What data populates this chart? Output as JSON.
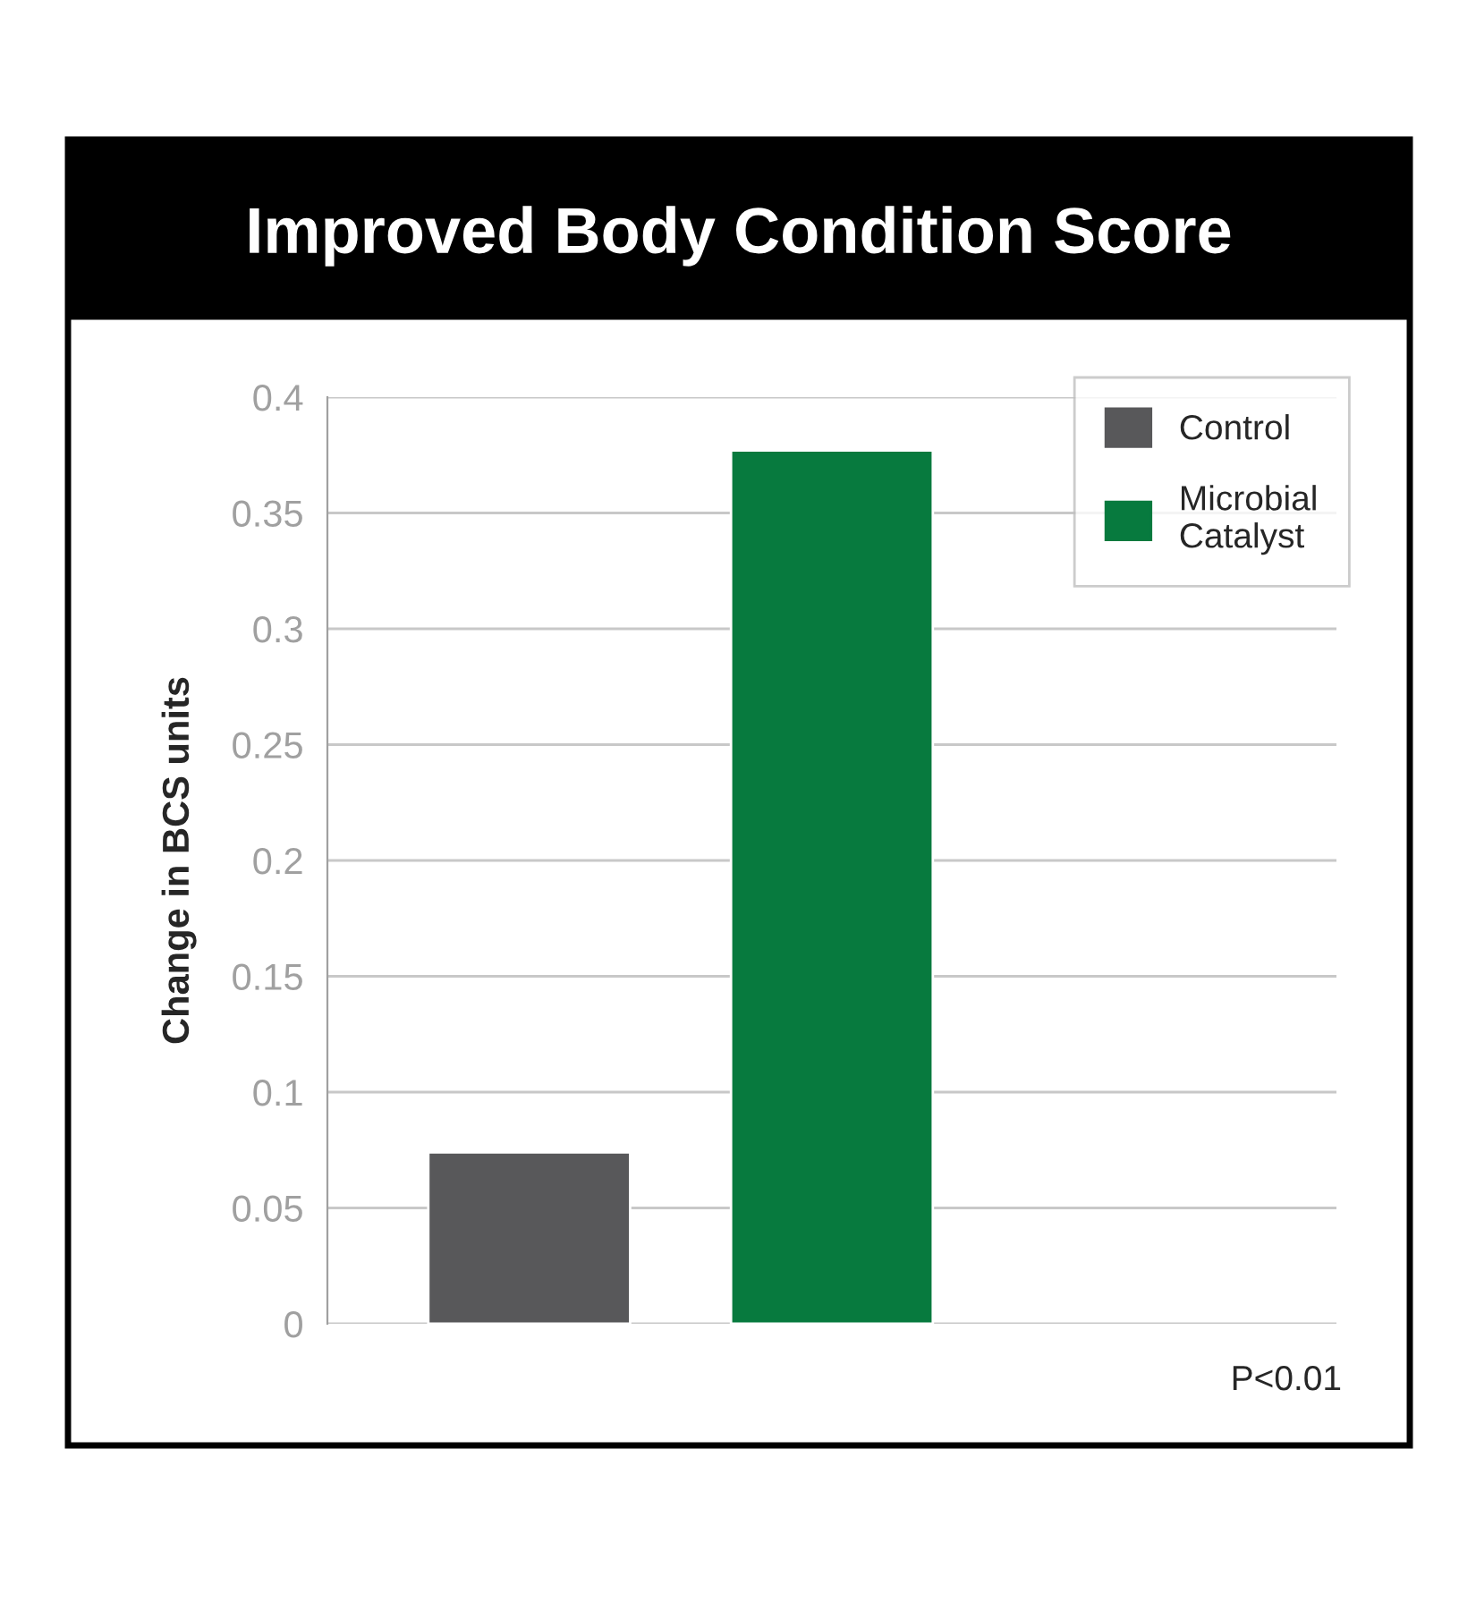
{
  "chart_data": {
    "type": "bar",
    "title": "Improved Body Condition Score",
    "ylabel": "Change in BCS units",
    "categories": [
      null
    ],
    "series": [
      {
        "name": "Control",
        "color": "#58585a",
        "values": [
          0.074
        ]
      },
      {
        "name": "Microbial\nCatalyst",
        "color": "#077a3e",
        "values": [
          0.377
        ]
      }
    ],
    "ylim": [
      0,
      0.4
    ],
    "yticks": [
      0,
      0.05,
      0.1,
      0.15,
      0.2,
      0.25,
      0.3,
      0.35,
      0.4
    ],
    "grid": "y",
    "legend": "top right",
    "annotations": [
      "P<0.01"
    ]
  }
}
